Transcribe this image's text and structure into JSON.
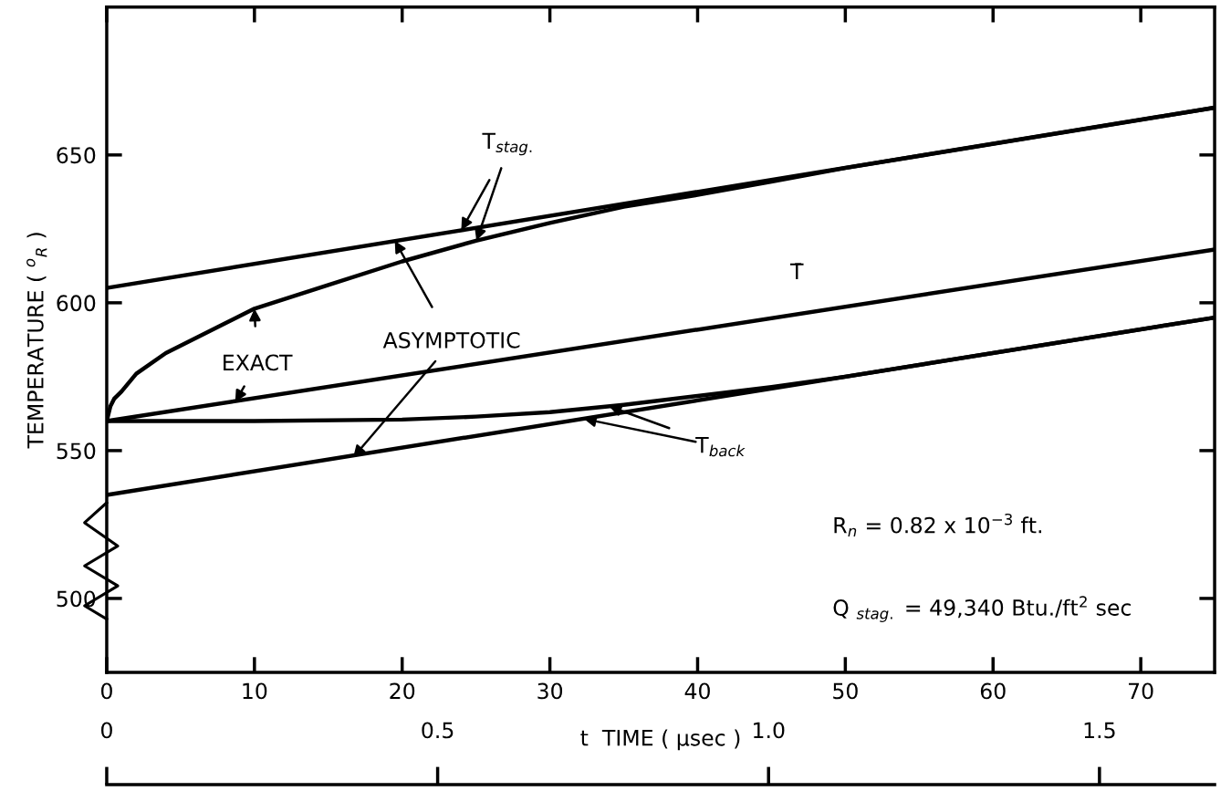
{
  "chart_data": {
    "type": "line",
    "ylabel": "TEMPERATURE ( $^{o}$$_{R}$ )",
    "x2label": "t  TIME ( µsec )",
    "xlim": [
      0,
      75
    ],
    "xticks": [
      0,
      10,
      20,
      30,
      40,
      50,
      60,
      70
    ],
    "ylim": [
      475,
      700
    ],
    "yticks": [
      500,
      550,
      600,
      650
    ],
    "x2lim": [
      0,
      1.674
    ],
    "x2ticks": [
      0,
      {
        "value": 0.5,
        "label": "0.5"
      },
      {
        "value": 1,
        "label": "1.0"
      },
      {
        "value": 1.5,
        "label": "1.5"
      }
    ],
    "grid": false,
    "legend": false,
    "marker": "none",
    "line_style": "solid",
    "series": [
      {
        "color": "#000000",
        "x": [
          0,
          75
        ],
        "values": [
          605,
          666
        ]
      },
      {
        "color": "#000000",
        "x": [
          0,
          0.25,
          0.5,
          1,
          2,
          4,
          6,
          8,
          10,
          15,
          20,
          25,
          30,
          35,
          40,
          45,
          50,
          75
        ],
        "values": [
          560,
          565,
          567.5,
          570,
          576,
          583,
          588,
          593,
          598,
          606,
          614,
          621,
          627,
          632.5,
          636.5,
          641,
          645.6,
          666
        ]
      },
      {
        "color": "#000000",
        "x": [
          0,
          75
        ],
        "values": [
          560,
          618
        ]
      },
      {
        "color": "#000000",
        "x": [
          0,
          10,
          20,
          25,
          30,
          35,
          40,
          45,
          50,
          75
        ],
        "values": [
          560,
          560,
          560.5,
          561.5,
          563,
          565.5,
          568.5,
          571.5,
          575,
          595
        ]
      },
      {
        "color": "#000000",
        "x": [
          0,
          75
        ],
        "values": [
          535,
          595
        ]
      }
    ],
    "annotations": [
      {
        "text": "T$_{stag.}$",
        "x": 24,
        "y": 624.5
      },
      {
        "text": "ASYMPTOTIC",
        "x": 19.5,
        "y": 621
      },
      {
        "text": "EXACT",
        "x": 10,
        "y": 598
      },
      {
        "text": "T$_{back}$",
        "x": 34,
        "y": 565
      },
      "T̄",
      "R$_{n}$ = 0.82 x 10$^{−3}$ ft.",
      "Q $_{stag.}$ = 49,340 Btu./ft$^{2}$ sec"
    ]
  }
}
